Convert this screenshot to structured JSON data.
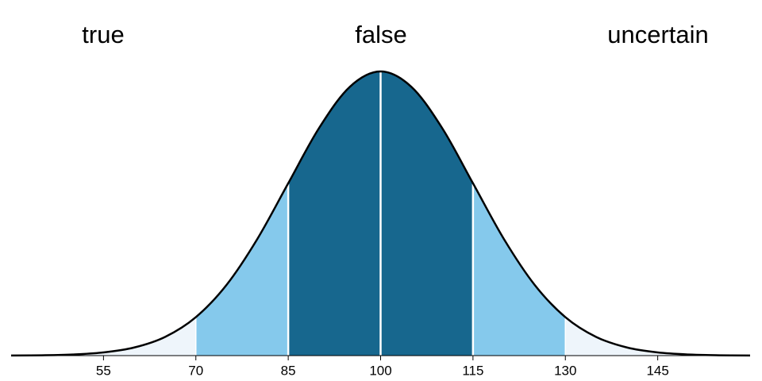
{
  "chart_data": {
    "type": "area",
    "annotations": [
      "true",
      "false",
      "uncertain"
    ],
    "x": [
      40,
      45,
      50,
      55,
      60,
      65,
      70,
      75,
      80,
      85,
      90,
      95,
      100,
      105,
      110,
      115,
      120,
      125,
      130,
      135,
      140,
      145,
      150,
      155,
      160
    ],
    "values": [
      8.9e-06,
      3.2e-05,
      0.000103,
      0.000295,
      0.00076,
      0.001748,
      0.0036,
      0.006633,
      0.010934,
      0.016131,
      0.021296,
      0.025159,
      0.026596,
      0.025159,
      0.021296,
      0.016131,
      0.010934,
      0.006633,
      0.0036,
      0.001748,
      0.00076,
      0.000295,
      0.000103,
      3.2e-05,
      8.9e-06
    ],
    "bands": [
      {
        "from": 40,
        "to": 70,
        "color": "#eef5fb"
      },
      {
        "from": 70,
        "to": 85,
        "color": "#85c9ec"
      },
      {
        "from": 85,
        "to": 115,
        "color": "#17678e"
      },
      {
        "from": 115,
        "to": 130,
        "color": "#85c9ec"
      },
      {
        "from": 130,
        "to": 160,
        "color": "#eef5fb"
      }
    ],
    "dividers": [
      70,
      85,
      100,
      115,
      130
    ],
    "line_color": "#000000",
    "xlim": [
      40,
      160
    ],
    "ylim": [
      0,
      0.0266
    ],
    "xticks": [
      55,
      70,
      85,
      100,
      115,
      130,
      145
    ]
  }
}
